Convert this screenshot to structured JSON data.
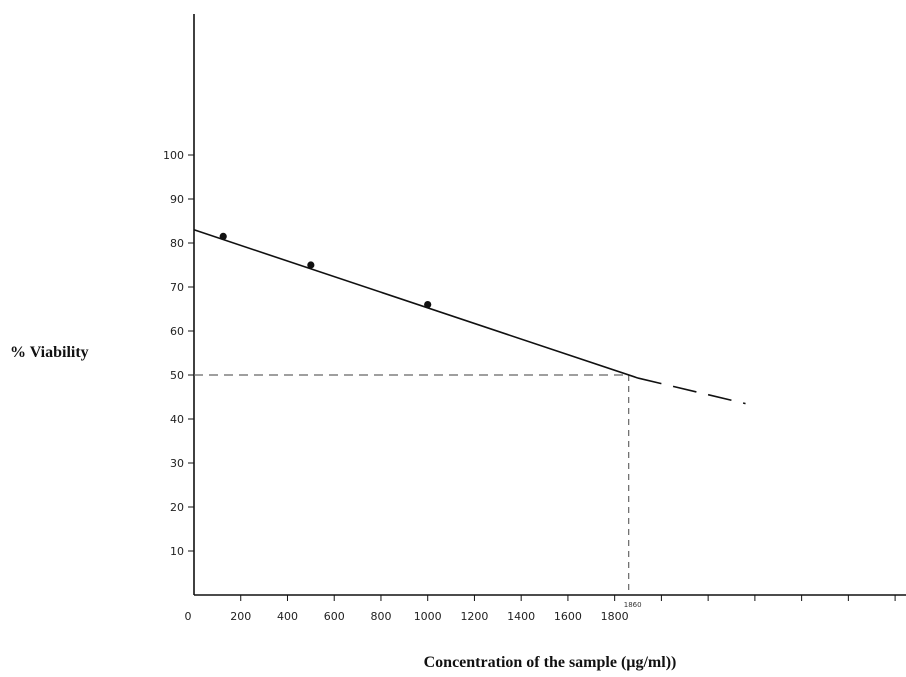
{
  "chart_data": {
    "type": "line",
    "title": "",
    "xlabel": "Concentration of the sample (µg/ml))",
    "ylabel": "% Viability",
    "x_ticks": [
      0,
      200,
      400,
      600,
      800,
      1000,
      1200,
      1400,
      1600,
      1800
    ],
    "x_tick_labels": [
      "0",
      "200",
      "400",
      "600",
      "800",
      "1000",
      "1200",
      "1400",
      "1600",
      "1800"
    ],
    "extra_x_ticks": 8,
    "y_ticks": [
      10,
      20,
      30,
      40,
      50,
      60,
      70,
      80,
      90,
      100
    ],
    "y_tick_labels": [
      "10",
      "20",
      "30",
      "40",
      "50",
      "60",
      "70",
      "80",
      "90",
      "100"
    ],
    "points": [
      {
        "x": 125,
        "y": 81.5
      },
      {
        "x": 500,
        "y": 75
      },
      {
        "x": 1000,
        "y": 66
      }
    ],
    "fit_line": {
      "x_start": 0,
      "y_start": 83,
      "x_end": 1900,
      "y_end": 49.3
    },
    "extrapolation": {
      "x_start": 1900,
      "y_start": 49.3,
      "x_end": 2360,
      "y_end": 43.5
    },
    "reference": {
      "x": 1860,
      "y": 50,
      "x_label": "1860"
    },
    "grid": false
  }
}
